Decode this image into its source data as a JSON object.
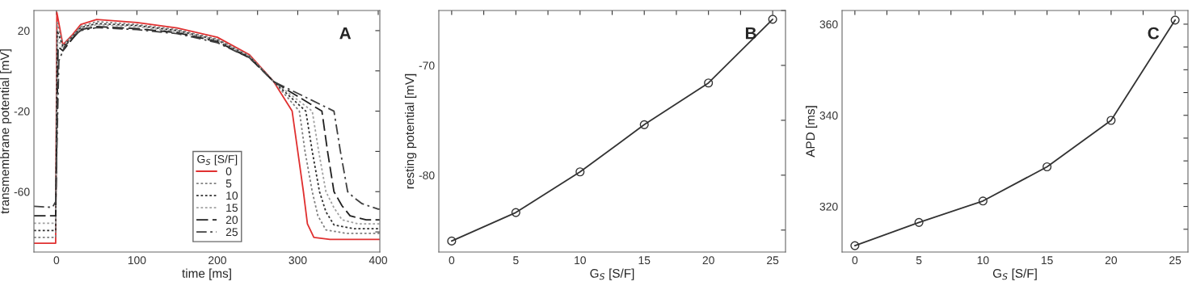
{
  "chart_data": [
    {
      "type": "line",
      "xlabel": "time [ms]",
      "ylabel": "transmembrane potential [mV]",
      "legend_title": "G$_{S}$ [S/F]",
      "legend": "bottom",
      "annotations": [
        "A"
      ],
      "grid": false,
      "marker": "none",
      "xlim": [
        -28,
        402
      ],
      "xticks": [
        0,
        {
          "value": 50,
          "label": null
        },
        100,
        {
          "value": 150,
          "label": null
        },
        200,
        {
          "value": 250,
          "label": null
        },
        300,
        {
          "value": 350,
          "label": null
        },
        400
      ],
      "ylim": [
        -90,
        30
      ],
      "yticks": [
        {
          "value": -80,
          "label": null
        },
        -60,
        {
          "value": -40,
          "label": null
        },
        -20,
        {
          "value": 0,
          "label": null
        },
        20
      ],
      "series": [
        {
          "name": "0",
          "color": "#e03030",
          "line_style": "solid",
          "x": [
            -28,
            -1,
            0.5,
            8,
            20,
            30,
            50,
            100,
            150,
            200,
            240,
            270,
            293,
            300,
            307,
            312,
            320,
            340,
            402
          ],
          "values": [
            -85.6,
            -85.6,
            29,
            13,
            18,
            23,
            25.5,
            24,
            21.3,
            16.7,
            8,
            -5.3,
            -20,
            -40,
            -60,
            -76,
            -82.7,
            -83.7,
            -83.7
          ]
        },
        {
          "name": "5",
          "color": "#808080",
          "line_style": "dotted",
          "x": [
            -28,
            -1,
            0.8,
            8,
            20,
            30,
            50,
            100,
            150,
            200,
            240,
            270,
            302,
            309,
            318,
            325,
            335,
            360,
            402
          ],
          "values": [
            -82.7,
            -82.7,
            24,
            13,
            17.5,
            22,
            24.5,
            23,
            20.5,
            15.8,
            7.5,
            -5.3,
            -20,
            -40,
            -60,
            -72,
            -79,
            -80.7,
            -80.7
          ]
        },
        {
          "name": "10",
          "color": "#303030",
          "line_style": "dotted",
          "x": [
            -28,
            -1,
            1,
            8,
            20,
            30,
            50,
            100,
            150,
            200,
            240,
            270,
            310,
            318,
            327,
            335,
            345,
            370,
            402
          ],
          "values": [
            -79.3,
            -79.3,
            20,
            12,
            17,
            21.5,
            23.5,
            22.5,
            20,
            15.3,
            7,
            -5.3,
            -20,
            -40,
            -60,
            -70,
            -76.5,
            -78.4,
            -78.4
          ]
        },
        {
          "name": "15",
          "color": "#a0a0a0",
          "line_style": "dotted",
          "x": [
            -28,
            -1,
            1.5,
            8,
            20,
            30,
            50,
            100,
            150,
            200,
            240,
            270,
            318,
            326,
            335,
            345,
            355,
            375,
            402
          ],
          "values": [
            -75.7,
            -75.7,
            16,
            11,
            16.5,
            21,
            23,
            22,
            19.5,
            15,
            7,
            -5.3,
            -20,
            -40,
            -60,
            -68,
            -74,
            -76,
            -76
          ]
        },
        {
          "name": "20",
          "color": "#202020",
          "line_style": "dashed",
          "x": [
            -28,
            -1,
            2,
            8,
            20,
            30,
            50,
            100,
            150,
            200,
            240,
            270,
            330,
            337,
            345,
            355,
            365,
            385,
            402
          ],
          "values": [
            -72,
            -72,
            12,
            10,
            16,
            20.5,
            22,
            21,
            19,
            14.5,
            6.5,
            -5.3,
            -20,
            -40,
            -60,
            -67,
            -72,
            -74,
            -74
          ]
        },
        {
          "name": "25",
          "color": "#404040",
          "line_style": "dashdot",
          "x": [
            -28,
            -5,
            -1,
            3,
            10,
            20,
            30,
            50,
            100,
            150,
            200,
            240,
            270,
            345,
            353,
            362,
            370,
            380,
            400,
            402
          ],
          "values": [
            -67.3,
            -67.8,
            -65,
            5,
            12,
            17,
            20,
            21.5,
            20.5,
            18.5,
            14,
            6.5,
            -5.3,
            -20,
            -40,
            -60,
            -63,
            -66,
            -68.7,
            -68.7
          ]
        }
      ]
    },
    {
      "type": "line",
      "xlabel": "G$_{S}$ [S/F]",
      "ylabel": "resting potential [mV]",
      "annotations": [
        "B"
      ],
      "grid": false,
      "marker": "circle",
      "xlim": [
        -1,
        26
      ],
      "xticks": [
        0,
        {
          "value": 2.5,
          "label": null
        },
        5,
        {
          "value": 7.5,
          "label": null
        },
        10,
        {
          "value": 12.5,
          "label": null
        },
        15,
        {
          "value": 17.5,
          "label": null
        },
        20,
        {
          "value": 22.5,
          "label": null
        },
        25
      ],
      "ylim": [
        -87,
        -65
      ],
      "yticks": [
        {
          "value": -85,
          "label": null
        },
        -80,
        {
          "value": -75,
          "label": null
        },
        -70,
        {
          "value": -65,
          "label": null
        }
      ],
      "series": [
        {
          "color": "#333333",
          "x": [
            0,
            5,
            10,
            15,
            20,
            25
          ],
          "values": [
            -86.0,
            -83.4,
            -79.7,
            -75.4,
            -71.6,
            -65.8
          ]
        }
      ]
    },
    {
      "type": "line",
      "xlabel": "G$_{S}$ [S/F]",
      "ylabel": "APD [ms]",
      "annotations": [
        "C"
      ],
      "grid": false,
      "marker": "circle",
      "xlim": [
        -1,
        26
      ],
      "xticks": [
        0,
        {
          "value": 2.5,
          "label": null
        },
        5,
        {
          "value": 7.5,
          "label": null
        },
        10,
        {
          "value": 12.5,
          "label": null
        },
        15,
        {
          "value": 17.5,
          "label": null
        },
        20,
        {
          "value": 22.5,
          "label": null
        },
        25
      ],
      "ylim": [
        310,
        363
      ],
      "yticks": [
        {
          "value": 315,
          "label": null
        },
        320,
        {
          "value": 325,
          "label": null
        },
        {
          "value": 330,
          "label": null
        },
        {
          "value": 335,
          "label": null
        },
        340,
        {
          "value": 345,
          "label": null
        },
        {
          "value": 350,
          "label": null
        },
        {
          "value": 355,
          "label": null
        },
        360
      ],
      "series": [
        {
          "color": "#333333",
          "x": [
            0,
            5,
            10,
            15,
            20,
            25
          ],
          "values": [
            311.4,
            316.5,
            321.2,
            328.7,
            338.9,
            360.9
          ]
        }
      ]
    }
  ]
}
